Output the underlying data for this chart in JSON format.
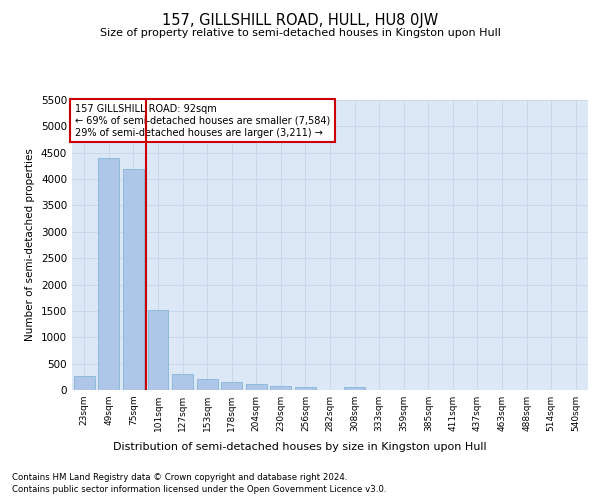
{
  "title": "157, GILLSHILL ROAD, HULL, HU8 0JW",
  "subtitle": "Size of property relative to semi-detached houses in Kingston upon Hull",
  "xlabel": "Distribution of semi-detached houses by size in Kingston upon Hull",
  "ylabel": "Number of semi-detached properties",
  "footer_line1": "Contains HM Land Registry data © Crown copyright and database right 2024.",
  "footer_line2": "Contains public sector information licensed under the Open Government Licence v3.0.",
  "annotation_line1": "157 GILLSHILL ROAD: 92sqm",
  "annotation_line2": "← 69% of semi-detached houses are smaller (7,584)",
  "annotation_line3": "29% of semi-detached houses are larger (3,211) →",
  "bar_color": "#aec6e8",
  "bar_edge_color": "#7aafd4",
  "vline_color": "#cc0000",
  "annotation_box_edge": "#cc0000",
  "grid_color": "#c8d8ea",
  "bg_color": "#dce8f5",
  "categories": [
    "23sqm",
    "49sqm",
    "75sqm",
    "101sqm",
    "127sqm",
    "153sqm",
    "178sqm",
    "204sqm",
    "230sqm",
    "256sqm",
    "282sqm",
    "308sqm",
    "333sqm",
    "359sqm",
    "385sqm",
    "411sqm",
    "437sqm",
    "463sqm",
    "488sqm",
    "514sqm",
    "540sqm"
  ],
  "values": [
    270,
    4400,
    4200,
    1520,
    310,
    200,
    145,
    105,
    75,
    50,
    0,
    50,
    0,
    0,
    0,
    0,
    0,
    0,
    0,
    0,
    0
  ],
  "ylim": [
    0,
    5500
  ],
  "yticks": [
    0,
    500,
    1000,
    1500,
    2000,
    2500,
    3000,
    3500,
    4000,
    4500,
    5000,
    5500
  ],
  "vline_x": 2.5
}
